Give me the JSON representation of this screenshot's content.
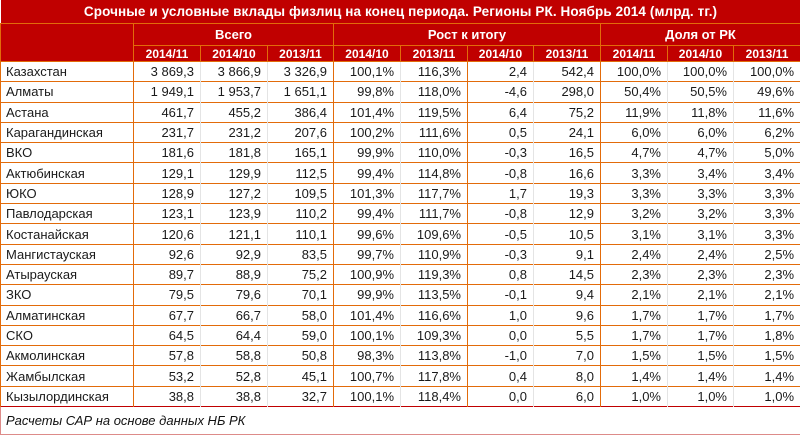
{
  "title": "Срочные и условные вклады физлиц на конец периода. Регионы РК. Ноябрь 2014 (млрд. тг.)",
  "table": {
    "groups": [
      {
        "label": "Всего",
        "span": 3
      },
      {
        "label": "Рост к итогу",
        "span": 4
      },
      {
        "label": "Доля от РК",
        "span": 3
      }
    ],
    "subheaders": [
      "2014/11",
      "2014/10",
      "2013/11",
      "2014/10",
      "2013/11",
      "2014/10",
      "2013/11",
      "2014/11",
      "2014/10",
      "2013/11"
    ],
    "rows": [
      {
        "region": "Казахстан",
        "values": [
          "3 869,3",
          "3 866,9",
          "3 326,9",
          "100,1%",
          "116,3%",
          "2,4",
          "542,4",
          "100,0%",
          "100,0%",
          "100,0%"
        ]
      },
      {
        "region": "Алматы",
        "values": [
          "1 949,1",
          "1 953,7",
          "1 651,1",
          "99,8%",
          "118,0%",
          "-4,6",
          "298,0",
          "50,4%",
          "50,5%",
          "49,6%"
        ]
      },
      {
        "region": "Астана",
        "values": [
          "461,7",
          "455,2",
          "386,4",
          "101,4%",
          "119,5%",
          "6,4",
          "75,2",
          "11,9%",
          "11,8%",
          "11,6%"
        ]
      },
      {
        "region": "Карагандинская",
        "values": [
          "231,7",
          "231,2",
          "207,6",
          "100,2%",
          "111,6%",
          "0,5",
          "24,1",
          "6,0%",
          "6,0%",
          "6,2%"
        ]
      },
      {
        "region": "ВКО",
        "values": [
          "181,6",
          "181,8",
          "165,1",
          "99,9%",
          "110,0%",
          "-0,3",
          "16,5",
          "4,7%",
          "4,7%",
          "5,0%"
        ]
      },
      {
        "region": "Актюбинская",
        "values": [
          "129,1",
          "129,9",
          "112,5",
          "99,4%",
          "114,8%",
          "-0,8",
          "16,6",
          "3,3%",
          "3,4%",
          "3,4%"
        ]
      },
      {
        "region": "ЮКО",
        "values": [
          "128,9",
          "127,2",
          "109,5",
          "101,3%",
          "117,7%",
          "1,7",
          "19,3",
          "3,3%",
          "3,3%",
          "3,3%"
        ]
      },
      {
        "region": "Павлодарская",
        "values": [
          "123,1",
          "123,9",
          "110,2",
          "99,4%",
          "111,7%",
          "-0,8",
          "12,9",
          "3,2%",
          "3,2%",
          "3,3%"
        ]
      },
      {
        "region": "Костанайская",
        "values": [
          "120,6",
          "121,1",
          "110,1",
          "99,6%",
          "109,6%",
          "-0,5",
          "10,5",
          "3,1%",
          "3,1%",
          "3,3%"
        ]
      },
      {
        "region": "Мангистауская",
        "values": [
          "92,6",
          "92,9",
          "83,5",
          "99,7%",
          "110,9%",
          "-0,3",
          "9,1",
          "2,4%",
          "2,4%",
          "2,5%"
        ]
      },
      {
        "region": "Атырауская",
        "values": [
          "89,7",
          "88,9",
          "75,2",
          "100,9%",
          "119,3%",
          "0,8",
          "14,5",
          "2,3%",
          "2,3%",
          "2,3%"
        ]
      },
      {
        "region": "ЗКО",
        "values": [
          "79,5",
          "79,6",
          "70,1",
          "99,9%",
          "113,5%",
          "-0,1",
          "9,4",
          "2,1%",
          "2,1%",
          "2,1%"
        ]
      },
      {
        "region": "Алматинская",
        "values": [
          "67,7",
          "66,7",
          "58,0",
          "101,4%",
          "116,6%",
          "1,0",
          "9,6",
          "1,7%",
          "1,7%",
          "1,7%"
        ]
      },
      {
        "region": "СКО",
        "values": [
          "64,5",
          "64,4",
          "59,0",
          "100,1%",
          "109,3%",
          "0,0",
          "5,5",
          "1,7%",
          "1,7%",
          "1,8%"
        ]
      },
      {
        "region": "Акмолинская",
        "values": [
          "57,8",
          "58,8",
          "50,8",
          "98,3%",
          "113,8%",
          "-1,0",
          "7,0",
          "1,5%",
          "1,5%",
          "1,5%"
        ]
      },
      {
        "region": "Жамбылская",
        "values": [
          "53,2",
          "52,8",
          "45,1",
          "100,7%",
          "117,8%",
          "0,4",
          "8,0",
          "1,4%",
          "1,4%",
          "1,4%"
        ]
      },
      {
        "region": "Кызылординская",
        "values": [
          "38,8",
          "38,8",
          "32,7",
          "100,1%",
          "118,4%",
          "0,0",
          "6,0",
          "1,0%",
          "1,0%",
          "1,0%"
        ]
      }
    ]
  },
  "footer": {
    "note": "Расчеты САР на основе данных НБ РК"
  },
  "colors": {
    "header_bg": "#c00000",
    "header_text": "#ffffff",
    "grid_orange": "#e26b0a",
    "grid_light": "#e4e4e4",
    "footer_border": "#dd8b89",
    "body_text": "#1a1a1a",
    "body_bg": "#ffffff"
  }
}
